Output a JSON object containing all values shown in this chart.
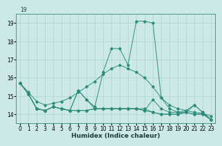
{
  "title": "",
  "xlabel": "Humidex (Indice chaleur)",
  "x": [
    0,
    1,
    2,
    3,
    4,
    5,
    6,
    7,
    8,
    9,
    10,
    11,
    12,
    13,
    14,
    15,
    16,
    17,
    18,
    19,
    20,
    21,
    22,
    23
  ],
  "series": [
    [
      15.7,
      15.1,
      14.3,
      14.2,
      14.4,
      14.3,
      14.2,
      14.2,
      14.2,
      14.3,
      14.3,
      14.3,
      14.3,
      14.3,
      14.3,
      14.3,
      14.1,
      14.0,
      14.0,
      14.0,
      14.1,
      14.0,
      14.0,
      13.7
    ],
    [
      15.7,
      15.1,
      14.3,
      14.2,
      14.4,
      14.3,
      14.2,
      14.2,
      14.2,
      14.3,
      14.3,
      14.3,
      14.3,
      14.3,
      14.3,
      14.2,
      14.8,
      14.3,
      14.1,
      14.1,
      14.2,
      14.5,
      14.1,
      13.7
    ],
    [
      15.7,
      15.1,
      14.3,
      14.2,
      14.4,
      14.3,
      14.2,
      15.3,
      14.8,
      14.3,
      14.3,
      14.3,
      14.3,
      14.3,
      14.3,
      14.2,
      14.1,
      14.0,
      14.0,
      14.0,
      14.1,
      14.0,
      14.0,
      13.7
    ],
    [
      15.7,
      15.1,
      14.3,
      14.2,
      14.4,
      14.3,
      14.2,
      15.3,
      14.8,
      14.4,
      16.3,
      17.6,
      17.6,
      16.7,
      19.1,
      19.1,
      19.0,
      14.9,
      14.3,
      14.1,
      14.1,
      14.5,
      14.1,
      13.7
    ]
  ],
  "smooth_series": [
    15.7,
    15.2,
    14.7,
    14.5,
    14.6,
    14.7,
    14.9,
    15.2,
    15.5,
    15.8,
    16.2,
    16.5,
    16.7,
    16.5,
    16.3,
    16.0,
    15.5,
    14.9,
    14.5,
    14.3,
    14.2,
    14.1,
    14.05,
    13.9
  ],
  "line_color": "#2e8b7a",
  "bg_color": "#cce9e8",
  "grid_color": "#aad4d2",
  "ylim": [
    13.5,
    19.5
  ],
  "yticks": [
    14,
    15,
    16,
    17,
    18,
    19
  ],
  "ytop_label": "19",
  "tick_fontsize": 5.5,
  "xlabel_fontsize": 6.5
}
